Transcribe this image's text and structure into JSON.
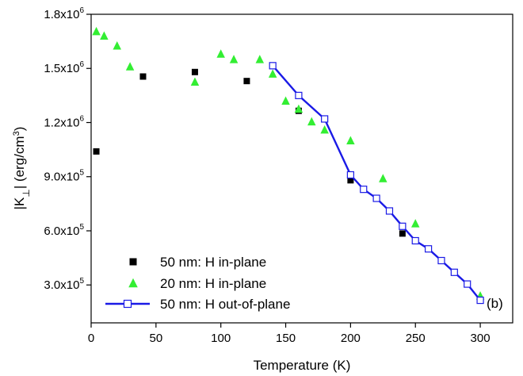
{
  "chart_data": {
    "type": "scatter",
    "xlabel": "Temperature (K)",
    "ylabel": "|K⊥| (erg/cm³)",
    "xlim": [
      0,
      325
    ],
    "ylim": [
      90000,
      1800000
    ],
    "xticks": [
      0,
      50,
      100,
      150,
      200,
      250,
      300
    ],
    "xtick_labels": [
      "0",
      "50",
      "100",
      "150",
      "200",
      "250",
      "300"
    ],
    "yticks": [
      300000,
      600000,
      900000,
      1200000,
      1500000,
      1800000
    ],
    "ytick_labels": [
      {
        "mant": "3.0x10",
        "exp": "5"
      },
      {
        "mant": "6.0x10",
        "exp": "5"
      },
      {
        "mant": "9.0x10",
        "exp": "5"
      },
      {
        "mant": "1.2x10",
        "exp": "6"
      },
      {
        "mant": "1.5x10",
        "exp": "6"
      },
      {
        "mant": "1.8x10",
        "exp": "6"
      }
    ],
    "legend_position": "bottom-left",
    "annotation": "(b)",
    "series": [
      {
        "name": "50 nm: H in-plane",
        "marker": "filled-square",
        "color": "#000000",
        "line": false,
        "x": [
          4,
          40,
          80,
          120,
          160,
          200,
          240
        ],
        "y": [
          1040000,
          1455000,
          1480000,
          1430000,
          1265000,
          880000,
          585000
        ]
      },
      {
        "name": "20 nm: H in-plane",
        "marker": "filled-triangle",
        "color": "#33ee33",
        "line": false,
        "x": [
          4,
          10,
          20,
          30,
          80,
          100,
          110,
          130,
          140,
          150,
          160,
          170,
          180,
          200,
          225,
          250,
          300
        ],
        "y": [
          1705000,
          1680000,
          1625000,
          1510000,
          1425000,
          1580000,
          1550000,
          1550000,
          1470000,
          1320000,
          1275000,
          1205000,
          1160000,
          1100000,
          890000,
          640000,
          240000
        ]
      },
      {
        "name": "50 nm: H out-of-plane",
        "marker": "open-square",
        "color": "#1a1ae6",
        "line": true,
        "x": [
          140,
          160,
          180,
          200,
          210,
          220,
          230,
          240,
          250,
          260,
          270,
          280,
          290,
          300
        ],
        "y": [
          1515000,
          1350000,
          1220000,
          910000,
          830000,
          780000,
          710000,
          625000,
          545000,
          500000,
          435000,
          370000,
          305000,
          215000
        ]
      }
    ]
  }
}
